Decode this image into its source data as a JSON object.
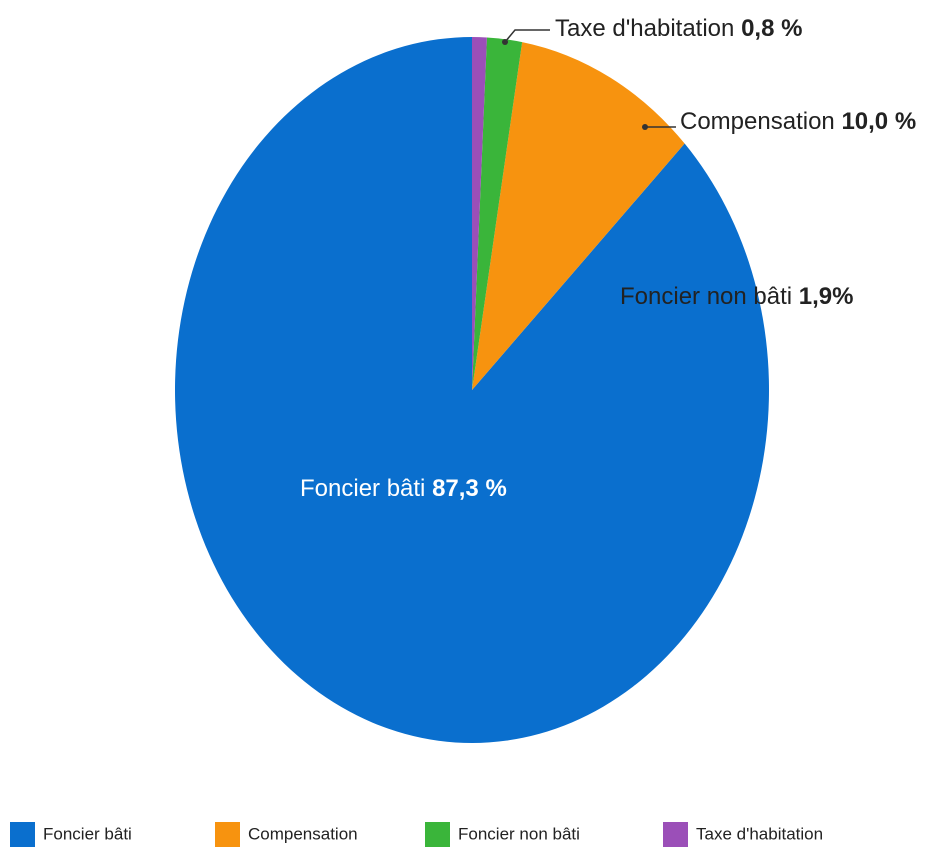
{
  "chart_data": {
    "type": "pie",
    "categories": [
      "Foncier bâti",
      "Compensation",
      "Foncier non bâti",
      "Taxe d'habitation"
    ],
    "values": [
      87.3,
      10.0,
      1.9,
      0.8
    ],
    "value_labels": [
      "87,3 %",
      "10,0 %",
      "1,9%",
      "0,8 %"
    ],
    "colors": [
      "#0a6fce",
      "#f7930f",
      "#3ab53a",
      "#9b4fb8"
    ],
    "legend": "bottom"
  }
}
